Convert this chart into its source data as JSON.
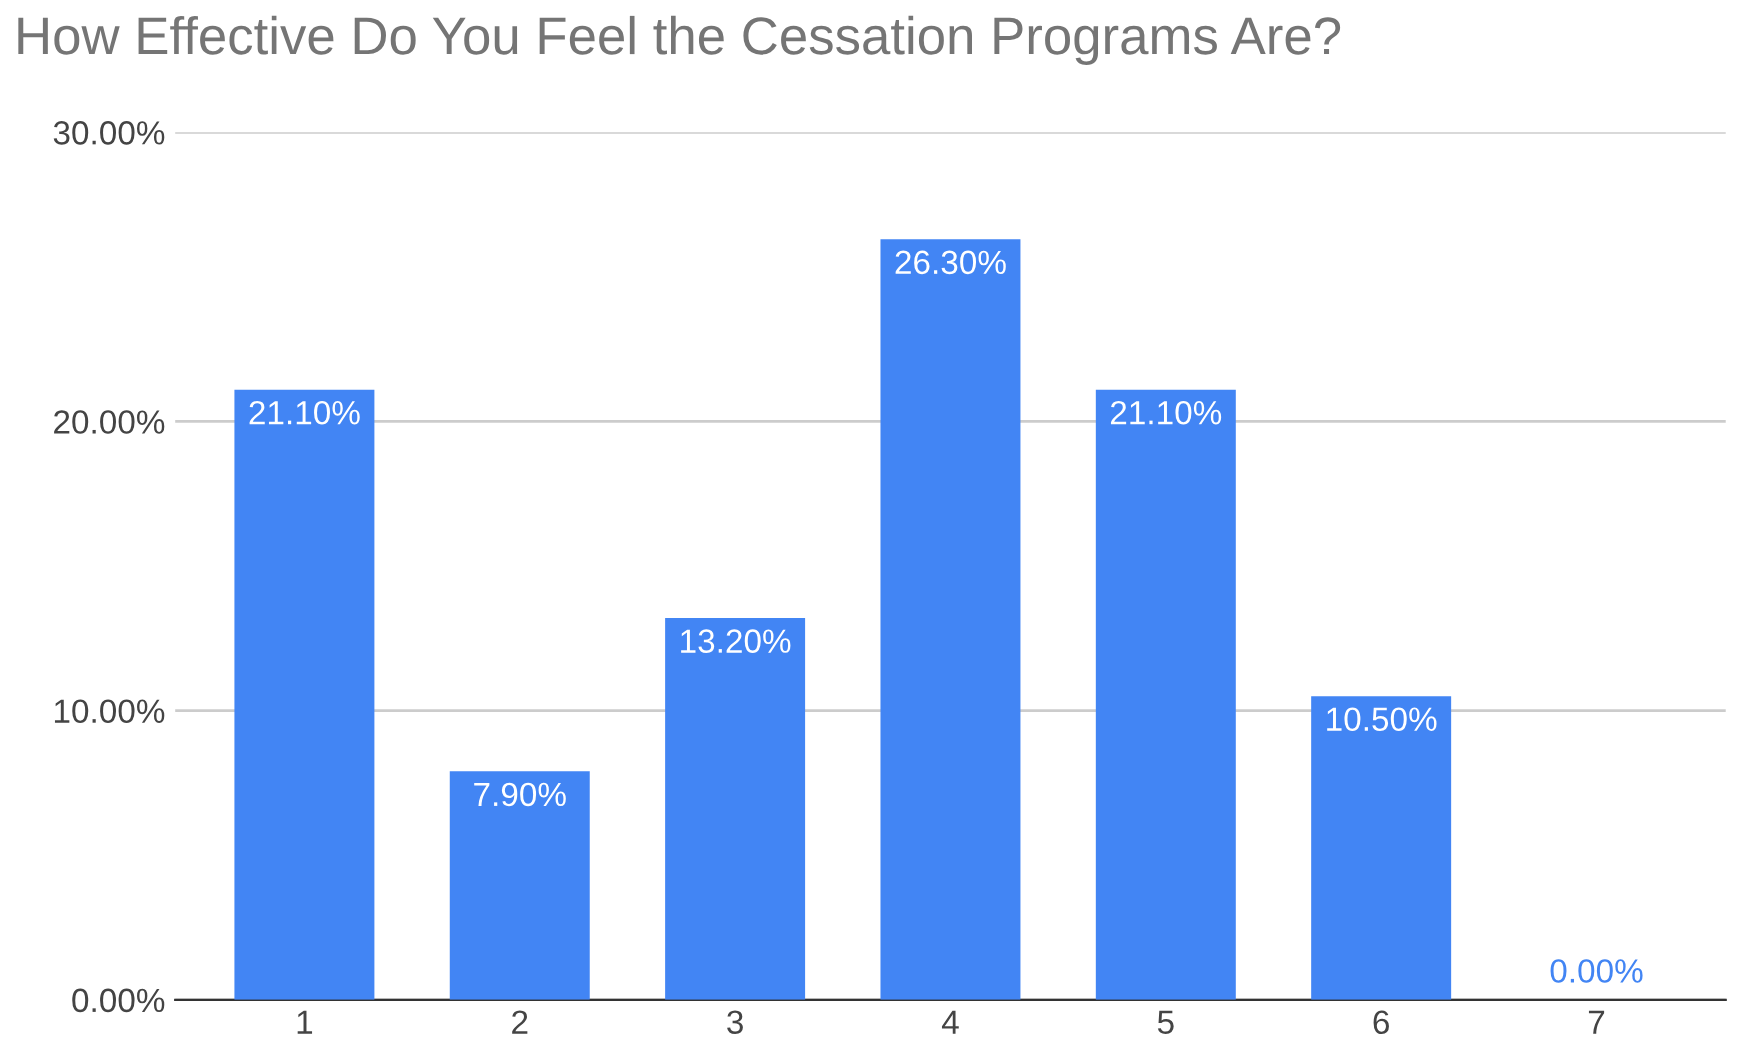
{
  "chart_data": {
    "type": "bar",
    "title": "How Effective Do You Feel the Cessation Programs Are?",
    "categories": [
      "1",
      "2",
      "3",
      "4",
      "5",
      "6",
      "7"
    ],
    "values": [
      21.1,
      7.9,
      13.2,
      26.3,
      21.1,
      10.5,
      0.0
    ],
    "value_labels": [
      "21.10%",
      "7.90%",
      "13.20%",
      "26.30%",
      "21.10%",
      "10.50%",
      "0.00%"
    ],
    "color": "#4285f4",
    "ylim": [
      0,
      30
    ],
    "yticks": [
      {
        "value": 0,
        "label": "0.00%"
      },
      {
        "value": 10,
        "label": "10.00%"
      },
      {
        "value": 20,
        "label": "20.00%"
      },
      {
        "value": 30,
        "label": "30.00%"
      }
    ],
    "grid": "y",
    "legend": false
  }
}
